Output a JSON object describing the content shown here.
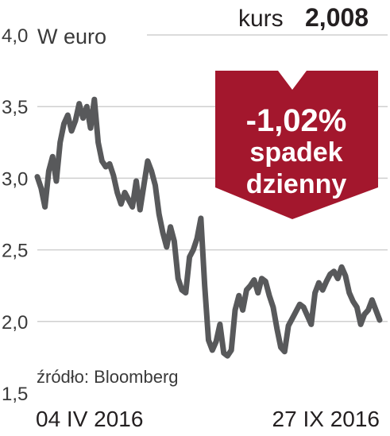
{
  "header": {
    "price_label": "kurs",
    "price_value": "2,008"
  },
  "badge": {
    "change": "-1,02%",
    "line1": "spadek",
    "line2": "dzienny",
    "color": "#a3172d"
  },
  "source": "źródło: Bloomberg",
  "chart_data": {
    "type": "line",
    "unit_label": "W euro",
    "ylim": [
      1.5,
      4.0
    ],
    "yticks": [
      1.5,
      2.0,
      2.5,
      3.0,
      3.5,
      4.0
    ],
    "ytick_labels": [
      "1,5",
      "2,0",
      "2,5",
      "3,0",
      "3,5",
      "4,0"
    ],
    "x_labels": [
      "04 IV 2016",
      "27 IX 2016"
    ],
    "grid": true,
    "line_color": "#58595b",
    "series": [
      {
        "values": [
          3.01,
          2.93,
          2.8,
          3.05,
          3.15,
          2.98,
          3.25,
          3.38,
          3.44,
          3.33,
          3.4,
          3.52,
          3.42,
          3.5,
          3.35,
          3.55,
          3.25,
          3.12,
          3.08,
          3.1,
          3.02,
          2.9,
          2.82,
          2.9,
          2.85,
          2.8,
          2.98,
          2.78,
          2.95,
          3.12,
          3.05,
          2.95,
          2.75,
          2.62,
          2.52,
          2.66,
          2.56,
          2.3,
          2.22,
          2.2,
          2.45,
          2.5,
          2.58,
          2.72,
          2.25,
          1.87,
          1.8,
          1.86,
          1.98,
          1.78,
          1.76,
          1.8,
          2.08,
          2.18,
          2.08,
          2.22,
          2.25,
          2.29,
          2.2,
          2.3,
          2.28,
          2.18,
          2.1,
          1.95,
          1.82,
          1.79,
          1.97,
          2.02,
          2.07,
          2.12,
          2.1,
          2.04,
          1.98,
          2.2,
          2.27,
          2.22,
          2.28,
          2.33,
          2.35,
          2.3,
          2.38,
          2.32,
          2.2,
          2.14,
          2.1,
          1.98,
          2.05,
          2.08,
          2.15,
          2.08,
          2.01
        ]
      }
    ]
  }
}
